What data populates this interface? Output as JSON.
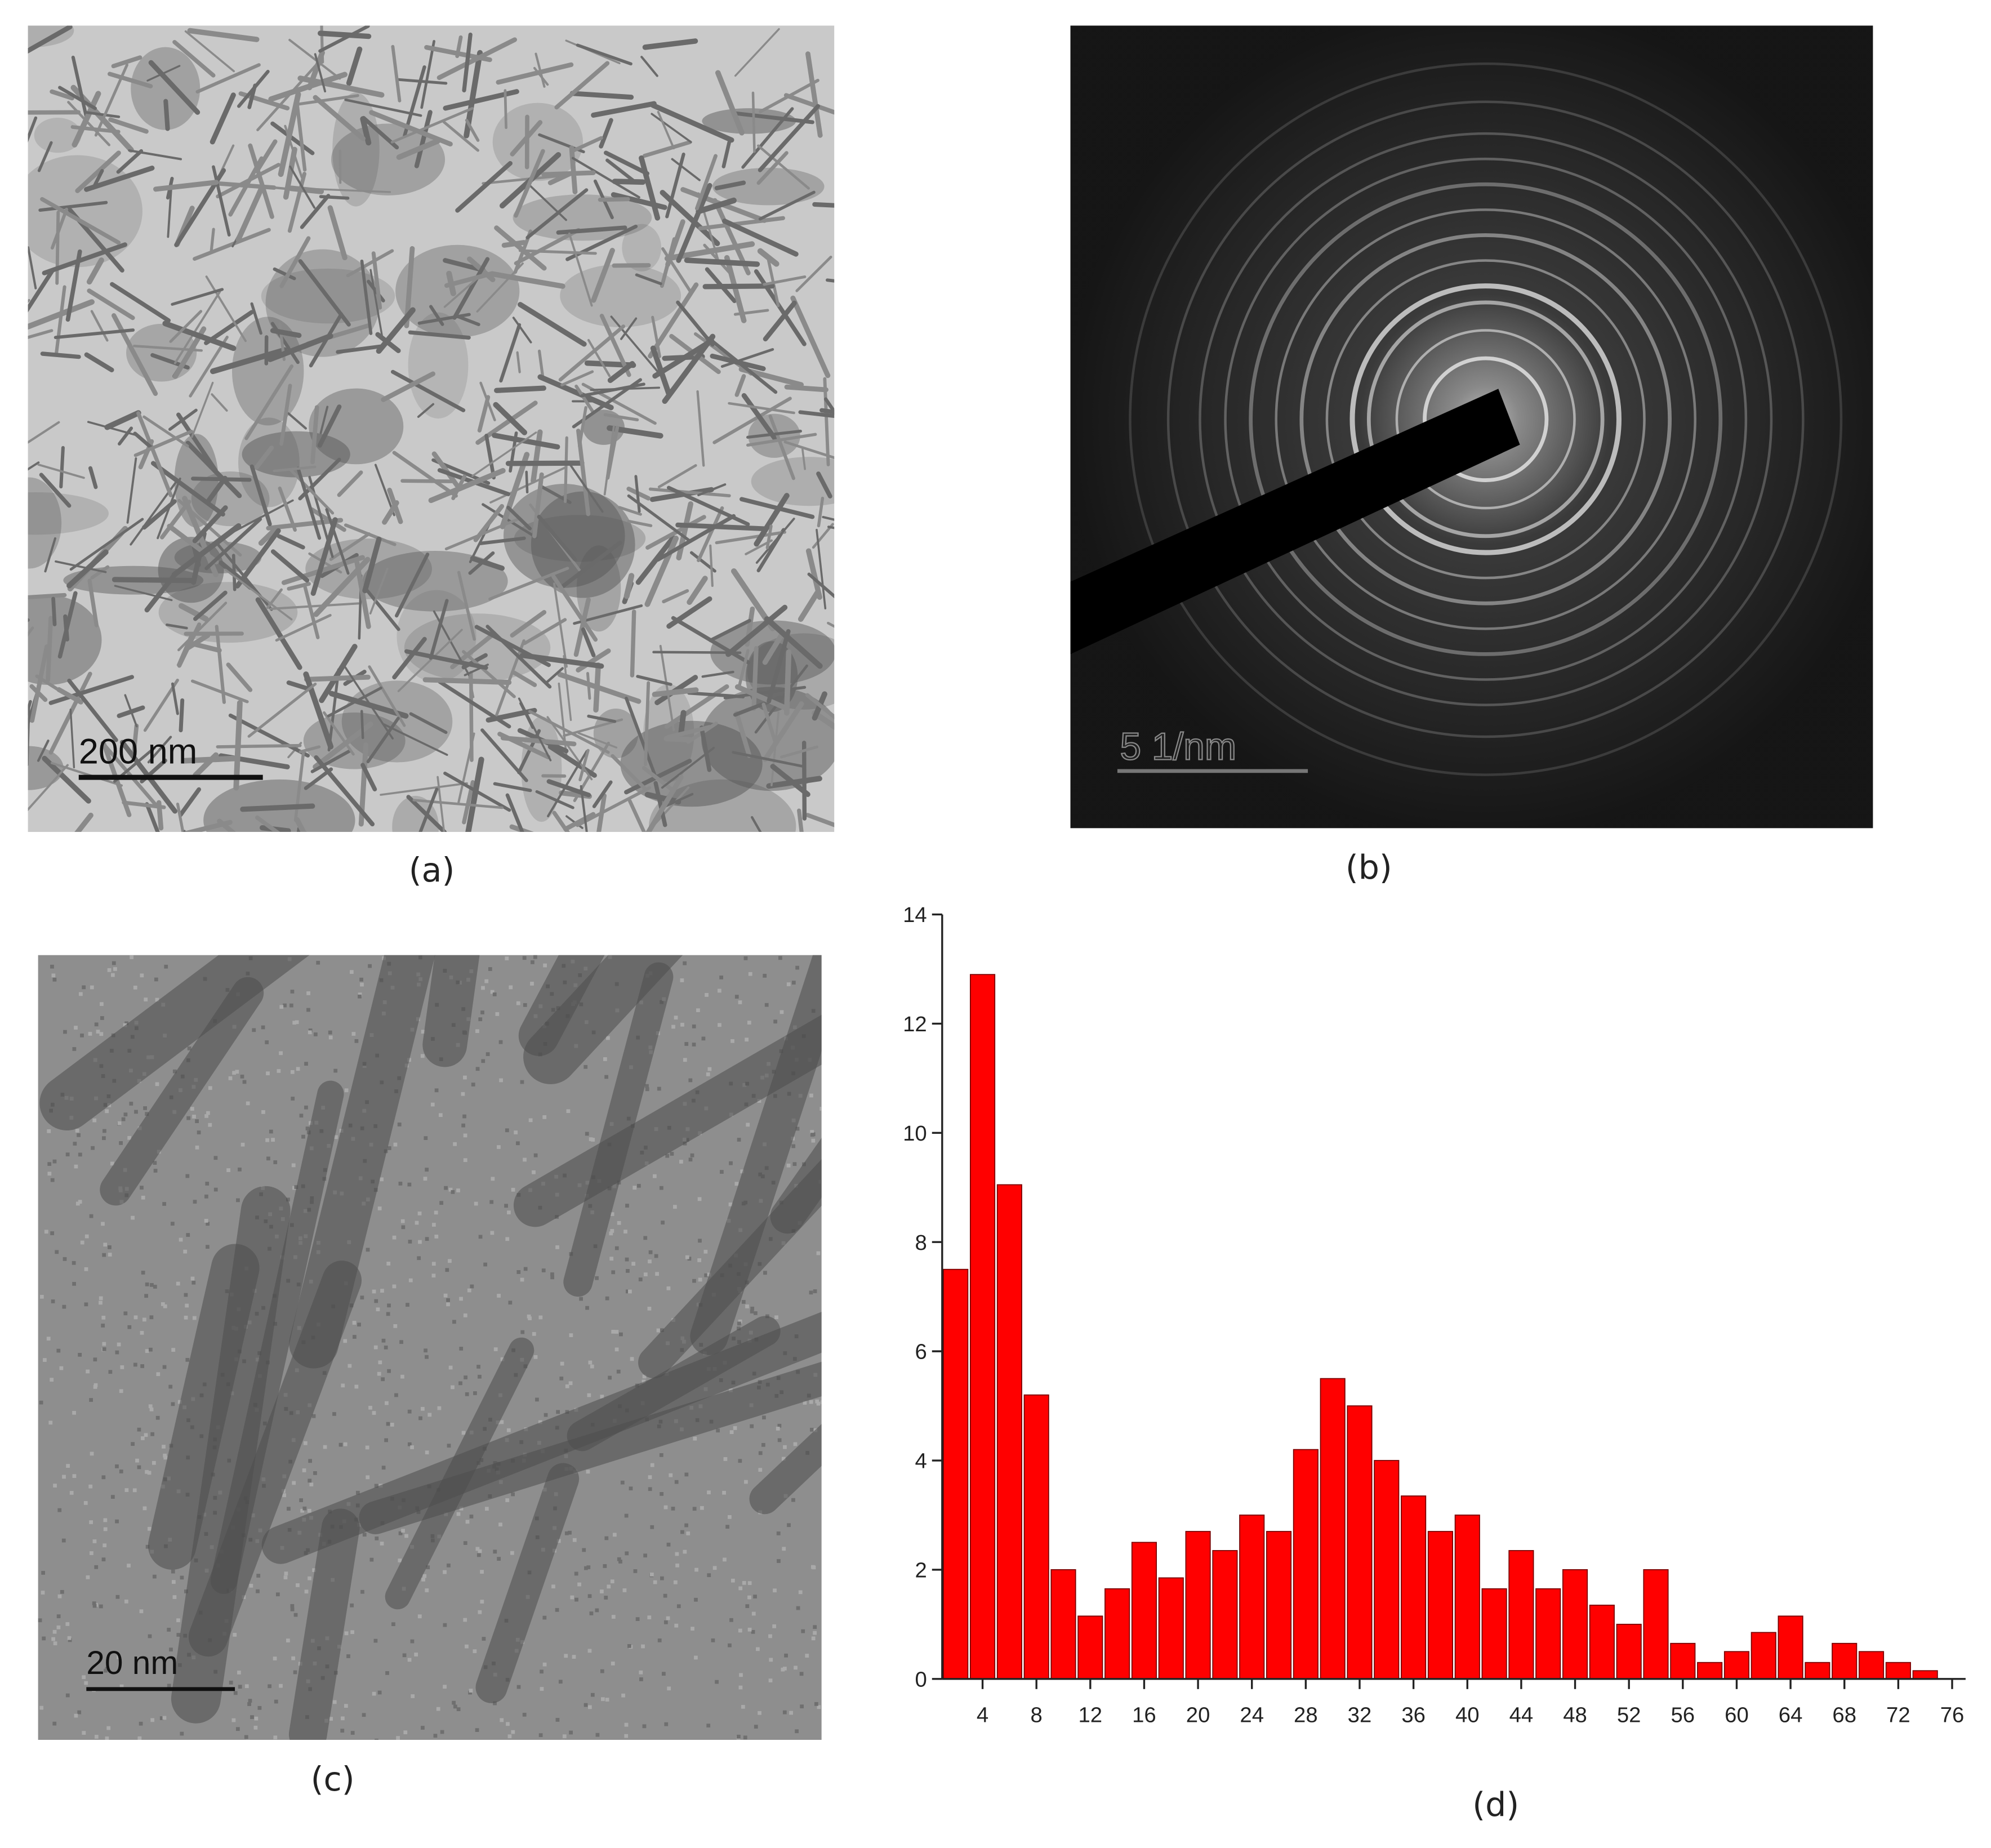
{
  "panels": {
    "a": {
      "caption": "(a)",
      "scale_bar": "200 nm"
    },
    "b": {
      "caption": "(b)",
      "scale_bar": "5 1/nm"
    },
    "c": {
      "caption": "(c)",
      "scale_bar": "20 nm"
    },
    "d": {
      "caption": "(d)"
    }
  },
  "chart_data": {
    "type": "histogram",
    "color": "#ff0000",
    "bins": [
      1,
      3,
      5,
      7,
      9,
      11,
      13,
      15,
      17,
      19,
      21,
      23,
      25,
      27,
      29,
      31,
      33,
      35,
      37,
      39,
      41,
      43,
      45,
      47,
      49,
      51,
      53,
      55,
      57,
      59,
      61,
      63,
      65,
      67,
      69,
      71,
      73,
      75
    ],
    "values": [
      7.5,
      12.9,
      9.05,
      5.2,
      2.0,
      1.15,
      1.65,
      2.5,
      1.85,
      2.7,
      2.35,
      3.0,
      2.7,
      4.2,
      5.5,
      5.0,
      4.0,
      3.35,
      2.7,
      3.0,
      1.65,
      2.35,
      1.65,
      2.0,
      1.35,
      1.0,
      2.0,
      0.65,
      0.3,
      0.5,
      0.85,
      1.15,
      0.3,
      0.65,
      0.5,
      0.3,
      0.15
    ],
    "xlim": [
      1,
      77
    ],
    "ylim": [
      0,
      14
    ],
    "xticks": [
      4,
      8,
      12,
      16,
      20,
      24,
      28,
      32,
      36,
      40,
      44,
      48,
      52,
      56,
      60,
      64,
      68,
      72,
      76
    ],
    "yticks": [
      0,
      2,
      4,
      6,
      8,
      10,
      12,
      14
    ]
  }
}
